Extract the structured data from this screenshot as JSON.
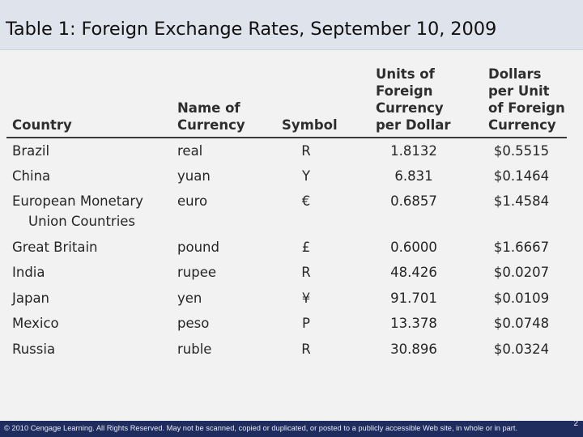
{
  "slide": {
    "title": "Table 1: Foreign Exchange Rates, September 10, 2009",
    "page_number": "2",
    "copyright": "© 2010 Cengage Learning. All Rights Reserved. May not be scanned, copied or duplicated, or posted to a publicly accessible Web site, in whole or in part."
  },
  "table": {
    "headers": {
      "country": [
        "Country"
      ],
      "currency_name": [
        "Name of",
        "Currency"
      ],
      "symbol": [
        "Symbol"
      ],
      "units_per_dollar": [
        "Units of",
        "Foreign",
        "Currency",
        "per Dollar"
      ],
      "dollars_per_unit": [
        "Dollars",
        "per Unit",
        "of Foreign",
        "Currency"
      ]
    },
    "rows": [
      {
        "country": [
          "Brazil"
        ],
        "currency": "real",
        "symbol": "R",
        "units_per_dollar": "1.8132",
        "dollars_per_unit": "$0.5515"
      },
      {
        "country": [
          "China"
        ],
        "currency": "yuan",
        "symbol": "Y",
        "units_per_dollar": "6.831",
        "dollars_per_unit": "$0.1464"
      },
      {
        "country": [
          "European Monetary",
          "Union Countries"
        ],
        "currency": "euro",
        "symbol": "€",
        "units_per_dollar": "0.6857",
        "dollars_per_unit": "$1.4584"
      },
      {
        "country": [
          "Great Britain"
        ],
        "currency": "pound",
        "symbol": "£",
        "units_per_dollar": "0.6000",
        "dollars_per_unit": "$1.6667"
      },
      {
        "country": [
          "India"
        ],
        "currency": "rupee",
        "symbol": "R",
        "units_per_dollar": "48.426",
        "dollars_per_unit": "$0.0207"
      },
      {
        "country": [
          "Japan"
        ],
        "currency": "yen",
        "symbol": "¥",
        "units_per_dollar": "91.701",
        "dollars_per_unit": "$0.0109"
      },
      {
        "country": [
          "Mexico"
        ],
        "currency": "peso",
        "symbol": "P",
        "units_per_dollar": "13.378",
        "dollars_per_unit": "$0.0748"
      },
      {
        "country": [
          "Russia"
        ],
        "currency": "ruble",
        "symbol": "R",
        "units_per_dollar": "30.896",
        "dollars_per_unit": "$0.0324"
      }
    ]
  }
}
